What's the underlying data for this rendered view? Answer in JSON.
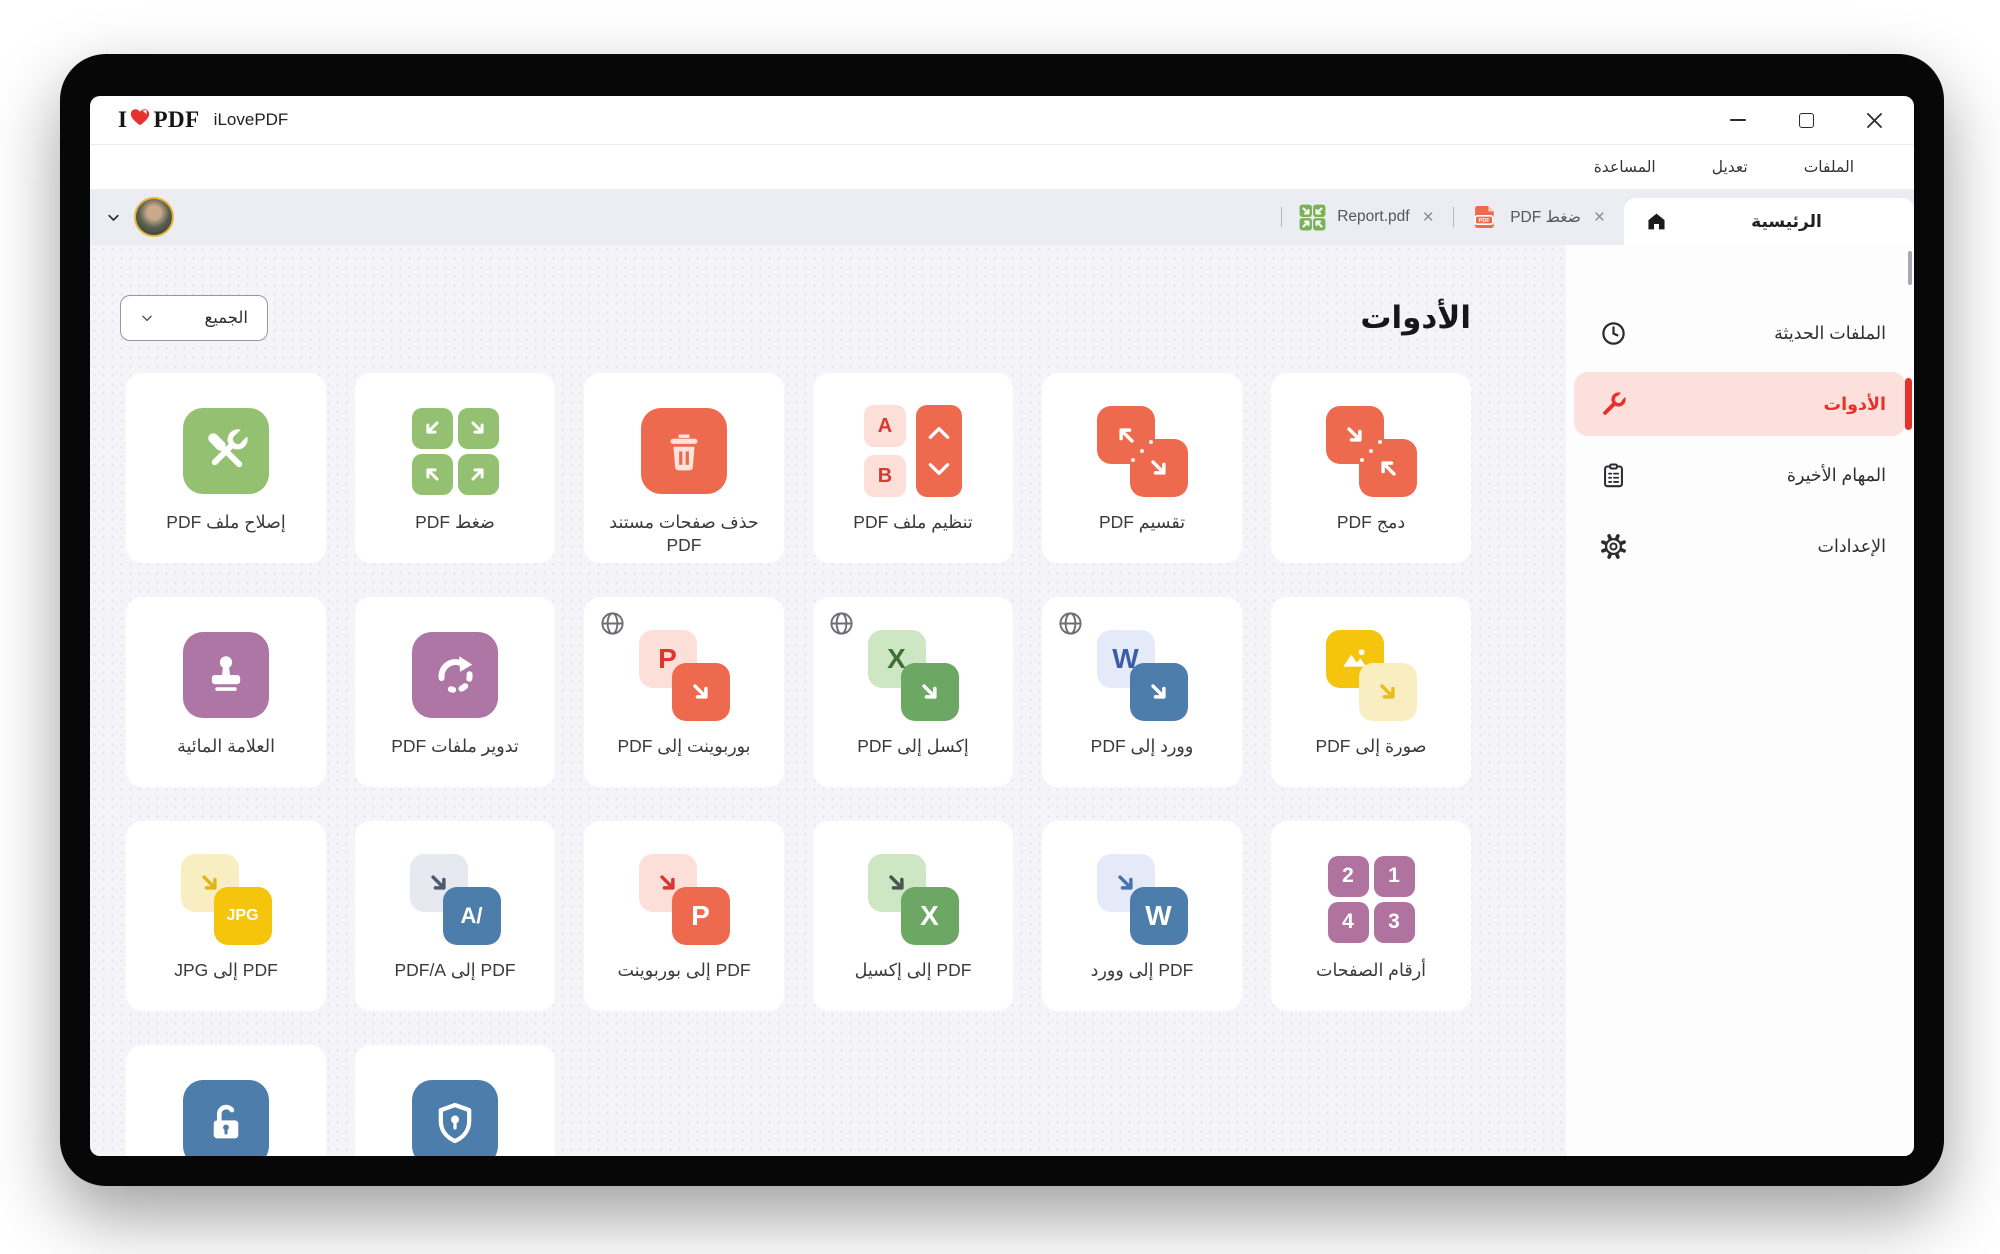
{
  "window": {
    "logo_left": "I",
    "logo_right": "PDF",
    "app_title": "iLovePDF",
    "controls": {
      "minimize": "minimize",
      "maximize": "maximize",
      "close": "close"
    }
  },
  "menu": {
    "items": [
      "الملفات",
      "تعديل",
      "المساعدة"
    ]
  },
  "tabs": {
    "active": {
      "label": "الرئيسية",
      "icon": "home-icon"
    },
    "documents": [
      {
        "label": "ضغط PDF",
        "icon": "pdf-file-icon",
        "close": "×"
      },
      {
        "label": "Report.pdf",
        "icon": "compress-mini-icon",
        "close": "×"
      }
    ]
  },
  "sidebar": {
    "items": [
      {
        "label": "الملفات الحديثة",
        "icon": "clock-icon",
        "active": false
      },
      {
        "label": "الأدوات",
        "icon": "wrench-icon",
        "active": true
      },
      {
        "label": "المهام الأخيرة",
        "icon": "clipboard-icon",
        "active": false
      },
      {
        "label": "الإعدادات",
        "icon": "gear-icon",
        "active": false
      }
    ]
  },
  "content": {
    "title": "الأدوات",
    "filter": {
      "label": "الجميع",
      "icon": "chevron-down-icon"
    },
    "tools": [
      {
        "name": "merge-pdf",
        "label": "دمج PDF",
        "icon": {
          "type": "duo",
          "mode": "merge",
          "color": "#ed6a4f"
        }
      },
      {
        "name": "split-pdf",
        "label": "تقسيم PDF",
        "icon": {
          "type": "duo",
          "mode": "split",
          "color": "#ed6a4f"
        }
      },
      {
        "name": "organize-pdf",
        "label": "تنظيم ملف PDF",
        "icon": {
          "type": "organize",
          "bar_color": "#ed6a4f",
          "cell_color": "#fbdfd8",
          "letters": [
            "A",
            "B"
          ],
          "letter_color": "#d63a30"
        }
      },
      {
        "name": "remove-pages",
        "label": "حذف صفحات مستند PDF",
        "icon": {
          "type": "glyph",
          "glyph": "trash",
          "bg": "#ed6a4f",
          "fg": "#fbe3da"
        }
      },
      {
        "name": "compress-pdf",
        "label": "ضغط PDF",
        "icon": {
          "type": "quad-arrows",
          "color": "#93c171"
        }
      },
      {
        "name": "repair-pdf",
        "label": "إصلاح ملف PDF",
        "icon": {
          "type": "glyph",
          "glyph": "tools",
          "bg": "#93c171",
          "fg": "#ffffff"
        }
      },
      {
        "name": "image-to-pdf",
        "label": "صورة إلى PDF",
        "globe": false,
        "icon": {
          "type": "pair",
          "sq1": {
            "bg": "#f5c50d",
            "kind": "image",
            "color": "#ffffff"
          },
          "sq2": {
            "bg": "#f9eec2",
            "kind": "arrow",
            "color": "#e8bd1c"
          }
        }
      },
      {
        "name": "word-to-pdf",
        "label": "وورد إلى PDF",
        "globe": true,
        "icon": {
          "type": "pair",
          "sq1": {
            "bg": "#e4eaf8",
            "kind": "text",
            "value": "W",
            "color": "#3a5da6"
          },
          "sq2": {
            "bg": "#4d7dab",
            "kind": "arrow",
            "color": "#ffffff"
          }
        }
      },
      {
        "name": "excel-to-pdf",
        "label": "إكسل إلى PDF",
        "globe": true,
        "icon": {
          "type": "pair",
          "sq1": {
            "bg": "#cde6c4",
            "kind": "text",
            "value": "X",
            "color": "#3f7036"
          },
          "sq2": {
            "bg": "#6ca763",
            "kind": "arrow",
            "color": "#ffffff"
          }
        }
      },
      {
        "name": "powerpoint-to-pdf",
        "label": "بوربوينت إلى PDF",
        "globe": true,
        "icon": {
          "type": "pair",
          "sq1": {
            "bg": "#fbdfd8",
            "kind": "text",
            "value": "P",
            "color": "#df352c"
          },
          "sq2": {
            "bg": "#ed6a4f",
            "kind": "arrow",
            "color": "#ffffff"
          }
        }
      },
      {
        "name": "rotate-pdf",
        "label": "تدوير ملفات PDF",
        "icon": {
          "type": "glyph",
          "glyph": "rotate",
          "bg": "#ad76a4",
          "fg": "#ffffff"
        }
      },
      {
        "name": "watermark",
        "label": "العلامة المائية",
        "icon": {
          "type": "glyph",
          "glyph": "stamp",
          "bg": "#ad76a4",
          "fg": "#ffffff"
        }
      },
      {
        "name": "page-numbers",
        "label": "أرقام الصفحات",
        "icon": {
          "type": "quad-numbers",
          "color": "#b0739f",
          "values": [
            "1",
            "2",
            "3",
            "4"
          ]
        }
      },
      {
        "name": "pdf-to-word",
        "label": "PDF إلى وورد",
        "icon": {
          "type": "pair",
          "sq1": {
            "bg": "#e4eaf8",
            "kind": "arrow",
            "color": "#4a73ad"
          },
          "sq2": {
            "bg": "#4d7dab",
            "kind": "text",
            "value": "W",
            "color": "#ffffff"
          }
        }
      },
      {
        "name": "pdf-to-excel",
        "label": "PDF إلى إكسيل",
        "icon": {
          "type": "pair",
          "sq1": {
            "bg": "#cde6c4",
            "kind": "arrow",
            "color": "#49564e"
          },
          "sq2": {
            "bg": "#6ca763",
            "kind": "text",
            "value": "X",
            "color": "#ffffff"
          }
        }
      },
      {
        "name": "pdf-to-powerpoint",
        "label": "PDF إلى بوربوينت",
        "icon": {
          "type": "pair",
          "sq1": {
            "bg": "#fbdfd8",
            "kind": "arrow",
            "color": "#d8392e"
          },
          "sq2": {
            "bg": "#ed6a4f",
            "kind": "text",
            "value": "P",
            "color": "#ffffff"
          }
        }
      },
      {
        "name": "pdf-to-pdfa",
        "label": "PDF إلى PDF/A",
        "icon": {
          "type": "pair",
          "sq1": {
            "bg": "#e7e9f1",
            "kind": "arrow",
            "color": "#4e5b70"
          },
          "sq2": {
            "bg": "#4d7dab",
            "kind": "text",
            "value": "/A",
            "color": "#ffffff"
          }
        }
      },
      {
        "name": "pdf-to-jpg",
        "label": "PDF إلى JPG",
        "icon": {
          "type": "pair",
          "sq1": {
            "bg": "#f9eec2",
            "kind": "arrow",
            "color": "#e4b317"
          },
          "sq2": {
            "bg": "#f5c50d",
            "kind": "text",
            "value": "JPG",
            "color": "#ffffff"
          }
        }
      }
    ],
    "bottom_tools": [
      {
        "name": "protect-pdf",
        "label": "",
        "icon": {
          "type": "glyph",
          "glyph": "shield",
          "bg": "#4d7dab",
          "fg": "#ffffff"
        }
      },
      {
        "name": "unlock-pdf",
        "label": "",
        "icon": {
          "type": "glyph",
          "glyph": "lock",
          "bg": "#4d7dab",
          "fg": "#ffffff"
        }
      }
    ]
  },
  "colors": {
    "brand_red": "#e5322d",
    "active_item_bg": "#fbe0dc",
    "tabstrip_bg": "#ececf3",
    "main_bg": "#f4f4f9",
    "avatar_ring": "#e9b63d"
  }
}
